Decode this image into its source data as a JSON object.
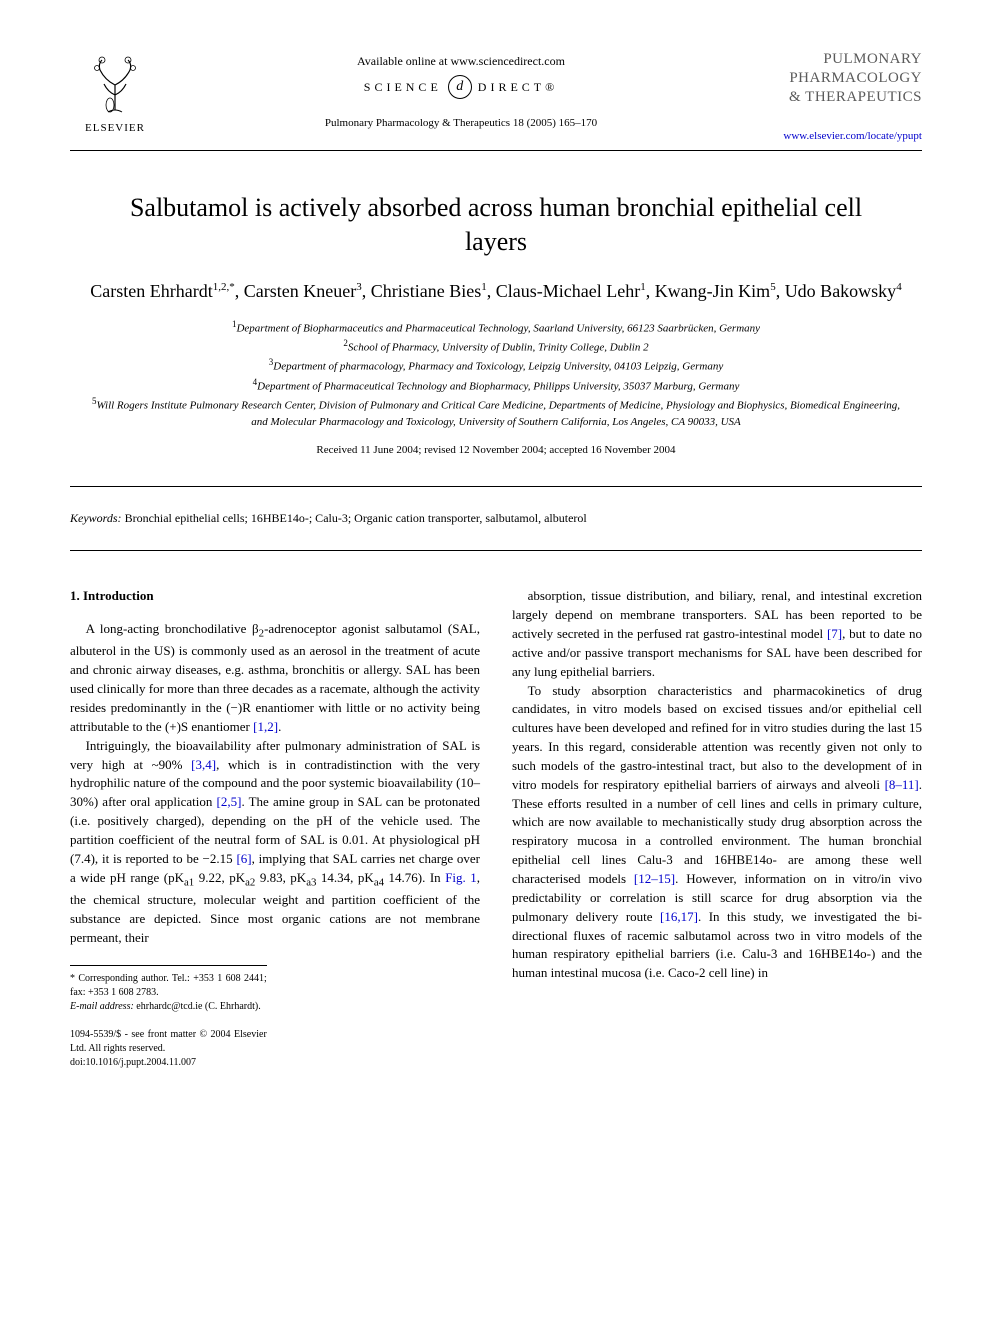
{
  "header": {
    "available_online": "Available online at www.sciencedirect.com",
    "science_direct_left": "SCIENCE",
    "science_direct_right": "DIRECT®",
    "sd_glyph": "d",
    "citation": "Pulmonary Pharmacology & Therapeutics 18 (2005) 165–170",
    "elsevier_label": "ELSEVIER",
    "journal_name_line1": "PULMONARY",
    "journal_name_line2": "PHARMACOLOGY",
    "journal_name_line3": "& THERAPEUTICS",
    "journal_url": "www.elsevier.com/locate/ypupt"
  },
  "article": {
    "title": "Salbutamol is actively absorbed across human bronchial epithelial cell layers",
    "authors_html": "Carsten Ehrhardt<sup>1,2,*</sup>, Carsten Kneuer<sup>3</sup>, Christiane Bies<sup>1</sup>, Claus-Michael Lehr<sup>1</sup>, Kwang-Jin Kim<sup>5</sup>, Udo Bakowsky<sup>4</sup>",
    "affiliations": [
      "<sup>1</sup>Department of Biopharmaceutics and Pharmaceutical Technology, Saarland University, 66123 Saarbrücken, Germany",
      "<sup>2</sup>School of Pharmacy, University of Dublin, Trinity College, Dublin 2",
      "<sup>3</sup>Department of pharmacology, Pharmacy and Toxicology, Leipzig University, 04103 Leipzig, Germany",
      "<sup>4</sup>Department of Pharmaceutical Technology and Biopharmacy, Philipps University, 35037 Marburg, Germany",
      "<sup>5</sup>Will Rogers Institute Pulmonary Research Center, Division of Pulmonary and Critical Care Medicine, Departments of Medicine, Physiology and Biophysics, Biomedical Engineering, and Molecular Pharmacology and Toxicology, University of Southern California, Los Angeles, CA 90033, USA"
    ],
    "dates": "Received 11 June 2004; revised 12 November 2004; accepted 16 November 2004",
    "keywords_label": "Keywords:",
    "keywords": " Bronchial epithelial cells; 16HBE14o-; Calu-3; Organic cation transporter, salbutamol, albuterol"
  },
  "body": {
    "section_heading": "1. Introduction",
    "col1_paras": [
      "A long-acting bronchodilative β<sub>2</sub>-adrenoceptor agonist salbutamol (SAL, albuterol in the US) is commonly used as an aerosol in the treatment of acute and chronic airway diseases, e.g. asthma, bronchitis or allergy. SAL has been used clinically for more than three decades as a racemate, although the activity resides predominantly in the (−)R enantiomer with little or no activity being attributable to the (+)S enantiomer <span class=\"ref-link\">[1,2]</span>.",
      "Intriguingly, the bioavailability after pulmonary administration of SAL is very high at ~90% <span class=\"ref-link\">[3,4]</span>, which is in contradistinction with the very hydrophilic nature of the compound and the poor systemic bioavailability (10–30%) after oral application <span class=\"ref-link\">[2,5]</span>. The amine group in SAL can be protonated (i.e. positively charged), depending on the pH of the vehicle used. The partition coefficient of the neutral form of SAL is 0.01. At physiological pH (7.4), it is reported to be −2.15 <span class=\"ref-link\">[6]</span>, implying that SAL carries net charge over a wide pH range (pK<sub>a1</sub> 9.22, pK<sub>a2</sub> 9.83, pK<sub>a3</sub> 14.34, pK<sub>a4</sub> 14.76). In <span class=\"ref-link\">Fig. 1</span>, the chemical structure, molecular weight and partition coefficient of the substance are depicted. Since most organic cations are not membrane permeant, their"
    ],
    "col2_paras": [
      "absorption, tissue distribution, and biliary, renal, and intestinal excretion largely depend on membrane transporters. SAL has been reported to be actively secreted in the perfused rat gastro-intestinal model <span class=\"ref-link\">[7]</span>, but to date no active and/or passive transport mechanisms for SAL have been described for any lung epithelial barriers.",
      "To study absorption characteristics and pharmacokinetics of drug candidates, in vitro models based on excised tissues and/or epithelial cell cultures have been developed and refined for in vitro studies during the last 15 years. In this regard, considerable attention was recently given not only to such models of the gastro-intestinal tract, but also to the development of in vitro models for respiratory epithelial barriers of airways and alveoli <span class=\"ref-link\">[8–11]</span>. These efforts resulted in a number of cell lines and cells in primary culture, which are now available to mechanistically study drug absorption across the respiratory mucosa in a controlled environment. The human bronchial epithelial cell lines Calu-3 and 16HBE14o- are among these well characterised models <span class=\"ref-link\">[12–15]</span>. However, information on in vitro/in vivo predictability or correlation is still scarce for drug absorption via the pulmonary delivery route <span class=\"ref-link\">[16,17]</span>. In this study, we investigated the bi-directional fluxes of racemic salbutamol across two in vitro models of the human respiratory epithelial barriers (i.e. Calu-3 and 16HBE14o-) and the human intestinal mucosa (i.e. Caco-2 cell line) in"
    ]
  },
  "footnotes": {
    "corresponding": "* Corresponding author. Tel.: +353 1 608 2441; fax: +353 1 608 2783.",
    "email_label": "E-mail address:",
    "email_value": " ehrhardc@tcd.ie (C. Ehrhardt).",
    "copyright_line1": "1094-5539/$ - see front matter © 2004 Elsevier Ltd. All rights reserved.",
    "copyright_line2": "doi:10.1016/j.pupt.2004.11.007"
  },
  "colors": {
    "text": "#000000",
    "link": "#0000cc",
    "journal_gray": "#5a5a5a",
    "background": "#ffffff"
  },
  "typography": {
    "body_font": "Georgia, Times New Roman, serif",
    "title_size_pt": 26,
    "author_size_pt": 18,
    "body_size_pt": 13,
    "small_size_pt": 11,
    "footnote_size_pt": 10
  }
}
